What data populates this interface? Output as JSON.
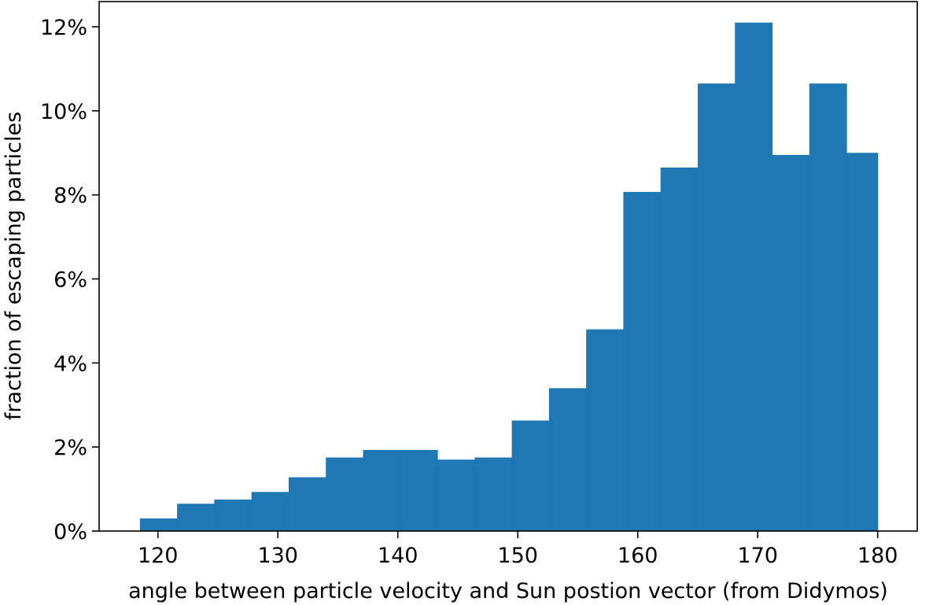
{
  "chart_data": {
    "type": "bar",
    "title": "",
    "xlabel": "angle between particle velocity and Sun postion vector (from Didymos)",
    "ylabel": "fraction of escaping particles",
    "xlim": [
      115.1,
      183.3
    ],
    "ylim": [
      0,
      12.6
    ],
    "grid": false,
    "bar_color": "#1f77b4",
    "bin_edges": [
      118.5,
      121.6,
      124.7,
      127.8,
      130.9,
      134.0,
      137.1,
      140.2,
      143.3,
      146.4,
      149.5,
      152.6,
      155.7,
      158.8,
      161.9,
      165.0,
      168.1,
      171.2,
      174.3,
      177.4,
      180.0
    ],
    "values": [
      0.3,
      0.65,
      0.75,
      0.93,
      1.28,
      1.75,
      1.93,
      1.93,
      1.7,
      1.75,
      2.63,
      3.4,
      4.8,
      8.07,
      8.65,
      10.65,
      12.1,
      8.95,
      10.65,
      9.0
    ],
    "x_ticks": [
      120,
      130,
      140,
      150,
      160,
      170,
      180
    ],
    "x_tick_labels": [
      "120",
      "130",
      "140",
      "150",
      "160",
      "170",
      "180"
    ],
    "y_ticks": [
      0,
      2,
      4,
      6,
      8,
      10,
      12
    ],
    "y_tick_labels": [
      "0%",
      "2%",
      "4%",
      "6%",
      "8%",
      "10%",
      "12%"
    ]
  }
}
